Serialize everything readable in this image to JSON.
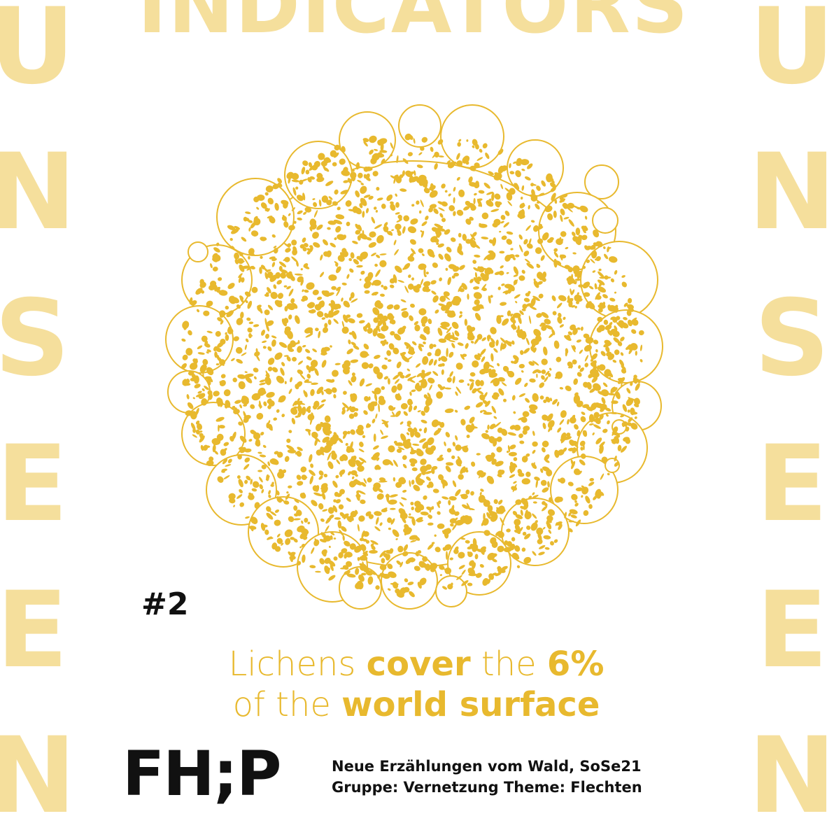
{
  "top_word": "INDICATORS",
  "side_word_letters": [
    "U",
    "N",
    "S",
    "E",
    "E",
    "N"
  ],
  "number_tag": "#2",
  "headline": {
    "line1": [
      {
        "text": "Lichens ",
        "style": "light"
      },
      {
        "text": "cover",
        "style": "bold"
      },
      {
        "text": " the ",
        "style": "light"
      },
      {
        "text": "6%",
        "style": "bold"
      }
    ],
    "line2": [
      {
        "text": "of the ",
        "style": "light"
      },
      {
        "text": "world surface",
        "style": "bold"
      }
    ]
  },
  "logo": "FH;P",
  "credits": {
    "line1": "Neue Erzählungen vom Wald, SoSe21",
    "line2": "Gruppe: Vernetzung Theme: Flechten"
  },
  "colors": {
    "pale_yellow": "#f5df9c",
    "mustard": "#e8b92e",
    "black": "#111111",
    "white": "#ffffff"
  }
}
